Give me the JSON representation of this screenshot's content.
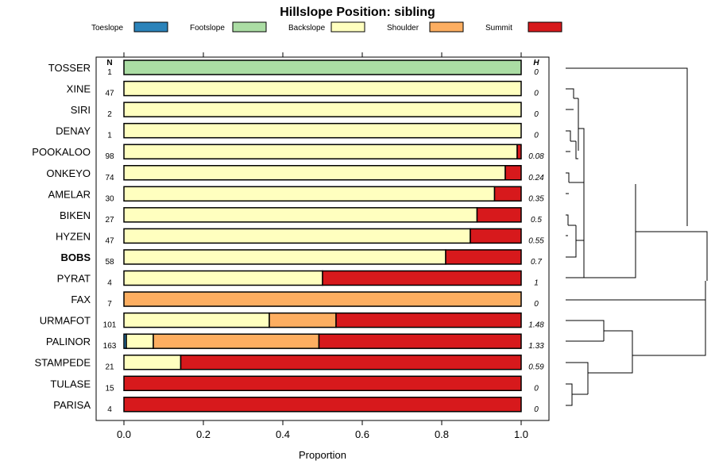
{
  "chart_data": {
    "type": "bar",
    "stacked": true,
    "orientation": "horizontal",
    "title": "Hillslope Position: sibling",
    "xlabel": "Proportion",
    "xlim": [
      0,
      1
    ],
    "xticks": [
      "0.0",
      "0.2",
      "0.4",
      "0.6",
      "0.8",
      "1.0"
    ],
    "n_header": "N",
    "h_header": "H",
    "legend": [
      {
        "name": "Toeslope",
        "color": "#2b83ba"
      },
      {
        "name": "Footslope",
        "color": "#abdda4"
      },
      {
        "name": "Backslope",
        "color": "#ffffbf"
      },
      {
        "name": "Shoulder",
        "color": "#fdae61"
      },
      {
        "name": "Summit",
        "color": "#d7191c"
      }
    ],
    "rows": [
      {
        "label": "TOSSER",
        "n": "1",
        "h": "0",
        "bold": false,
        "values": [
          0,
          1.0,
          0,
          0,
          0
        ]
      },
      {
        "label": "XINE",
        "n": "47",
        "h": "0",
        "bold": false,
        "values": [
          0,
          0,
          1.0,
          0,
          0
        ]
      },
      {
        "label": "SIRI",
        "n": "2",
        "h": "0",
        "bold": false,
        "values": [
          0,
          0,
          1.0,
          0,
          0
        ]
      },
      {
        "label": "DENAY",
        "n": "1",
        "h": "0",
        "bold": false,
        "values": [
          0,
          0,
          1.0,
          0,
          0
        ]
      },
      {
        "label": "POOKALOO",
        "n": "98",
        "h": "0.08",
        "bold": false,
        "values": [
          0,
          0,
          0.99,
          0,
          0.01
        ]
      },
      {
        "label": "ONKEYO",
        "n": "74",
        "h": "0.24",
        "bold": false,
        "values": [
          0,
          0,
          0.96,
          0,
          0.04
        ]
      },
      {
        "label": "AMELAR",
        "n": "30",
        "h": "0.35",
        "bold": false,
        "values": [
          0,
          0,
          0.933,
          0,
          0.067
        ]
      },
      {
        "label": "BIKEN",
        "n": "27",
        "h": "0.5",
        "bold": false,
        "values": [
          0,
          0,
          0.889,
          0,
          0.111
        ]
      },
      {
        "label": "HYZEN",
        "n": "47",
        "h": "0.55",
        "bold": false,
        "values": [
          0,
          0,
          0.872,
          0,
          0.128
        ]
      },
      {
        "label": "BOBS",
        "n": "58",
        "h": "0.7",
        "bold": true,
        "values": [
          0,
          0,
          0.81,
          0,
          0.19
        ]
      },
      {
        "label": "PYRAT",
        "n": "4",
        "h": "1",
        "bold": false,
        "values": [
          0,
          0,
          0.5,
          0,
          0.5
        ]
      },
      {
        "label": "FAX",
        "n": "7",
        "h": "0",
        "bold": false,
        "values": [
          0,
          0,
          0,
          1.0,
          0
        ]
      },
      {
        "label": "URMAFOT",
        "n": "101",
        "h": "1.48",
        "bold": false,
        "values": [
          0,
          0,
          0.366,
          0.168,
          0.466
        ]
      },
      {
        "label": "PALINOR",
        "n": "163",
        "h": "1.33",
        "bold": false,
        "values": [
          0.006,
          0,
          0.068,
          0.417,
          0.509
        ]
      },
      {
        "label": "STAMPEDE",
        "n": "21",
        "h": "0.59",
        "bold": false,
        "values": [
          0,
          0,
          0.143,
          0,
          0.857
        ]
      },
      {
        "label": "TULASE",
        "n": "15",
        "h": "0",
        "bold": false,
        "values": [
          0,
          0,
          0,
          0,
          1.0
        ]
      },
      {
        "label": "PARISA",
        "n": "4",
        "h": "0",
        "bold": false,
        "values": [
          0,
          0,
          0,
          0,
          1.0
        ]
      }
    ]
  }
}
